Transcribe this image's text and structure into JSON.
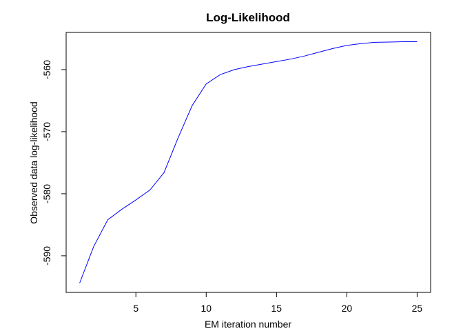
{
  "chart_data": {
    "type": "line",
    "title": "Log-Likelihood",
    "xlabel": "EM iteration number",
    "ylabel": "Observed data log-likelihood",
    "xlim": [
      0.04,
      25.96
    ],
    "ylim": [
      -595.9,
      -554.0
    ],
    "xticks": [
      5,
      10,
      15,
      20,
      25
    ],
    "yticks": [
      -590,
      -580,
      -570,
      -560
    ],
    "grid": false,
    "series": [
      {
        "color": "#0000ff",
        "x": [
          1,
          2,
          3,
          4,
          5,
          6,
          7,
          8,
          9,
          10,
          11,
          12,
          13,
          14,
          15,
          16,
          17,
          18,
          19,
          20,
          21,
          22,
          23,
          24,
          25
        ],
        "y": [
          -594.4,
          -588.5,
          -584.2,
          -582.5,
          -581.0,
          -579.4,
          -576.6,
          -571.0,
          -565.8,
          -562.3,
          -560.8,
          -560.0,
          -559.5,
          -559.1,
          -558.7,
          -558.3,
          -557.8,
          -557.2,
          -556.6,
          -556.1,
          -555.8,
          -555.6,
          -555.55,
          -555.5,
          -555.5
        ]
      }
    ]
  }
}
